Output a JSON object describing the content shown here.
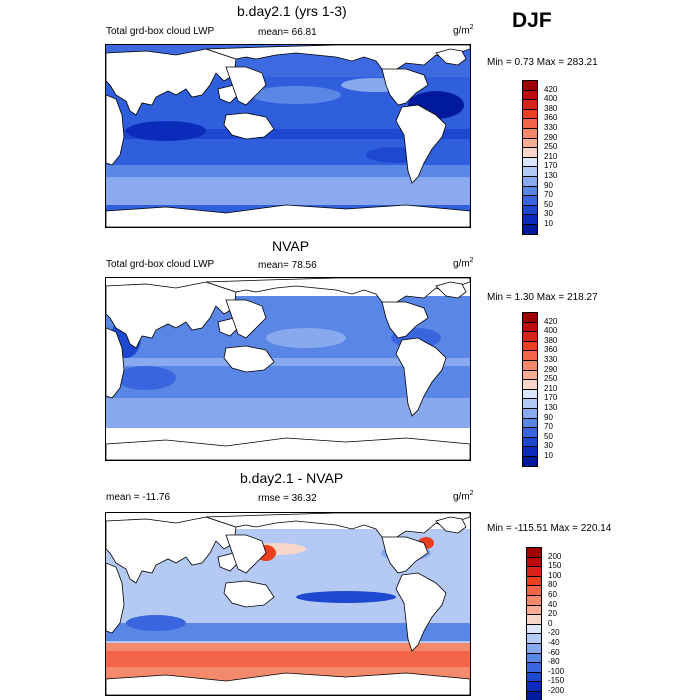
{
  "season": "DJF",
  "panels": [
    {
      "title": "b.day2.1 (yrs 1-3)",
      "left": "Total grd-box cloud LWP",
      "center": "mean=  66.81",
      "units": "g/m",
      "units_sup": "2",
      "minmax": "Min =   0.73 Max = 283.21",
      "levels": [
        "420",
        "400",
        "380",
        "360",
        "330",
        "290",
        "250",
        "210",
        "170",
        "130",
        "90",
        "70",
        "50",
        "30",
        "10"
      ],
      "colors": [
        "#9e0000",
        "#bd0a0a",
        "#d72418",
        "#ea4020",
        "#f26548",
        "#f5896c",
        "#f7ae94",
        "#f6d6c6",
        "#dbe6f8",
        "#b4c9f4",
        "#89a9ee",
        "#5a86e6",
        "#3966de",
        "#1d49d1",
        "#0b2cbb",
        "#001a9c"
      ]
    },
    {
      "title": "NVAP",
      "left": "Total grd-box cloud LWP",
      "center": "mean=  78.56",
      "units": "g/m",
      "units_sup": "2",
      "minmax": "Min =   1.30 Max = 218.27",
      "levels": [
        "420",
        "400",
        "380",
        "360",
        "330",
        "290",
        "250",
        "210",
        "170",
        "130",
        "90",
        "70",
        "50",
        "30",
        "10"
      ],
      "colors": [
        "#9e0000",
        "#bd0a0a",
        "#d72418",
        "#ea4020",
        "#f26548",
        "#f5896c",
        "#f7ae94",
        "#f6d6c6",
        "#dbe6f8",
        "#b4c9f4",
        "#89a9ee",
        "#5a86e6",
        "#3966de",
        "#1d49d1",
        "#0b2cbb",
        "#001a9c"
      ]
    },
    {
      "title": "b.day2.1 - NVAP",
      "left": "mean = -11.76",
      "center": "rmse =  36.32",
      "units": "g/m",
      "units_sup": "2",
      "minmax": "Min = -115.51 Max = 220.14",
      "levels": [
        "200",
        "150",
        "100",
        "80",
        "60",
        "40",
        "20",
        "0",
        "-20",
        "-40",
        "-60",
        "-80",
        "-100",
        "-150",
        "-200"
      ],
      "colors": [
        "#9e0000",
        "#bd0a0a",
        "#d72418",
        "#ea4020",
        "#f26548",
        "#f5896c",
        "#f7ae94",
        "#f6d6c6",
        "#dbe6f8",
        "#b4c9f4",
        "#89a9ee",
        "#5a86e6",
        "#3966de",
        "#1d49d1",
        "#0b2cbb",
        "#001a9c"
      ]
    }
  ]
}
